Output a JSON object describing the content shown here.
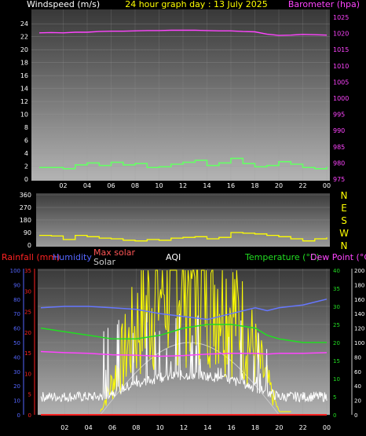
{
  "chart_data": [
    {
      "type": "line",
      "title": "24 hour graph day : 13 July 2025",
      "ylabel": "Windspeed (m/s)",
      "y2label": "Barometer (hpa)",
      "x_ticks": [
        "02",
        "04",
        "06",
        "08",
        "10",
        "12",
        "14",
        "16",
        "18",
        "20",
        "22",
        "00"
      ],
      "ylim": [
        0,
        25
      ],
      "y_ticks": [
        0,
        2,
        4,
        6,
        8,
        10,
        12,
        14,
        16,
        18,
        20,
        22,
        24
      ],
      "y2lim": [
        975,
        1025
      ],
      "y2_ticks": [
        975,
        980,
        985,
        990,
        995,
        1000,
        1005,
        1010,
        1015,
        1020,
        1025
      ],
      "grid": true,
      "series": [
        {
          "axis": "y2",
          "color": "#ff44ff",
          "x": [
            0,
            1,
            2,
            3,
            4,
            5,
            6,
            7,
            8,
            9,
            10,
            11,
            12,
            13,
            14,
            15,
            16,
            17,
            18,
            19,
            20,
            21,
            22,
            23,
            24
          ],
          "values": [
            1020.2,
            1020.3,
            1020.2,
            1020.4,
            1020.4,
            1020.6,
            1020.7,
            1020.7,
            1020.8,
            1020.9,
            1020.9,
            1021.0,
            1021.0,
            1021.0,
            1020.9,
            1020.8,
            1020.8,
            1020.6,
            1020.5,
            1019.8,
            1019.4,
            1019.5,
            1019.7,
            1019.6,
            1019.5
          ]
        },
        {
          "axis": "y",
          "color": "#66ff66",
          "x": [
            0,
            1,
            2,
            3,
            4,
            5,
            6,
            7,
            8,
            9,
            10,
            11,
            12,
            13,
            14,
            15,
            16,
            17,
            18,
            19,
            20,
            21,
            22,
            23,
            24
          ],
          "values": [
            1.8,
            1.8,
            1.6,
            2.2,
            2.5,
            2.1,
            2.6,
            2.2,
            2.4,
            1.8,
            1.9,
            2.3,
            2.6,
            2.9,
            2.1,
            2.5,
            3.2,
            2.4,
            1.9,
            2.1,
            2.7,
            2.3,
            1.8,
            1.6,
            1.9
          ]
        }
      ]
    },
    {
      "type": "line",
      "ylim": [
        0,
        360
      ],
      "y_ticks": [
        0,
        90,
        180,
        270,
        360
      ],
      "y2_labels": [
        "N",
        "W",
        "S",
        "E",
        "N"
      ],
      "grid": true,
      "series": [
        {
          "color": "#ffff00",
          "x": [
            0,
            1,
            2,
            3,
            4,
            5,
            6,
            7,
            8,
            9,
            10,
            11,
            12,
            13,
            14,
            15,
            16,
            17,
            18,
            19,
            20,
            21,
            22,
            23,
            24
          ],
          "values": [
            70,
            65,
            40,
            70,
            60,
            50,
            45,
            35,
            30,
            40,
            35,
            50,
            55,
            60,
            45,
            55,
            90,
            85,
            80,
            70,
            60,
            45,
            30,
            45,
            55
          ]
        }
      ]
    },
    {
      "type": "line",
      "legend": [
        "Rainfall (mm)",
        "Humidity",
        "Max solar",
        "Solar",
        "AQI",
        "Temperature (°C)",
        "Dew Point (°C)"
      ],
      "legend_colors": [
        "#ff2222",
        "#5566ff",
        "#ff5555",
        "#cccccc",
        "#ffffff",
        "#22dd22",
        "#ff44ff"
      ],
      "x_ticks": [
        "02",
        "04",
        "06",
        "08",
        "10",
        "12",
        "14",
        "16",
        "18",
        "20",
        "22",
        "00"
      ],
      "rain_lim": [
        0,
        35
      ],
      "rain_ticks": [
        0,
        5,
        10,
        15,
        20,
        25,
        30,
        35
      ],
      "humidity_lim": [
        0,
        100
      ],
      "humidity_ticks": [
        0,
        10,
        20,
        30,
        40,
        50,
        60,
        70,
        80,
        90,
        100
      ],
      "temp_lim": [
        0,
        40
      ],
      "temp_ticks": [
        0,
        5,
        10,
        15,
        20,
        25,
        30,
        35,
        40
      ],
      "aqi_lim": [
        0,
        200
      ],
      "aqi_ticks": [
        0,
        20,
        40,
        60,
        80,
        100,
        120,
        140,
        160,
        180,
        200
      ],
      "grid": true,
      "series": [
        {
          "name": "Humidity",
          "color": "#6677ff",
          "axis": "humidity",
          "x": [
            0,
            2,
            4,
            6,
            8,
            10,
            12,
            14,
            16,
            18,
            19,
            20,
            22,
            24
          ],
          "values": [
            74,
            75,
            75,
            74,
            73,
            70,
            68,
            66,
            70,
            74,
            72,
            74,
            76,
            80
          ]
        },
        {
          "name": "Temperature (°C)",
          "color": "#22dd22",
          "axis": "temp",
          "x": [
            0,
            2,
            4,
            6,
            8,
            10,
            12,
            14,
            16,
            18,
            19,
            20,
            22,
            24
          ],
          "values": [
            24,
            23,
            22,
            21,
            21,
            22,
            24,
            25,
            25,
            24,
            22,
            21,
            20,
            20
          ]
        },
        {
          "name": "Dew Point (°C)",
          "color": "#ff44ff",
          "axis": "temp",
          "x": [
            0,
            2,
            4,
            6,
            8,
            10,
            12,
            14,
            16,
            18,
            19,
            20,
            22,
            24
          ],
          "values": [
            17.5,
            17.2,
            17,
            16.6,
            16.5,
            16.2,
            16.4,
            16.8,
            17,
            17,
            16.8,
            17,
            17,
            17.2
          ]
        },
        {
          "name": "Rainfall (mm)",
          "color": "#ff2222",
          "axis": "rain",
          "x": [
            0,
            24
          ],
          "values": [
            0,
            0
          ]
        }
      ]
    }
  ]
}
